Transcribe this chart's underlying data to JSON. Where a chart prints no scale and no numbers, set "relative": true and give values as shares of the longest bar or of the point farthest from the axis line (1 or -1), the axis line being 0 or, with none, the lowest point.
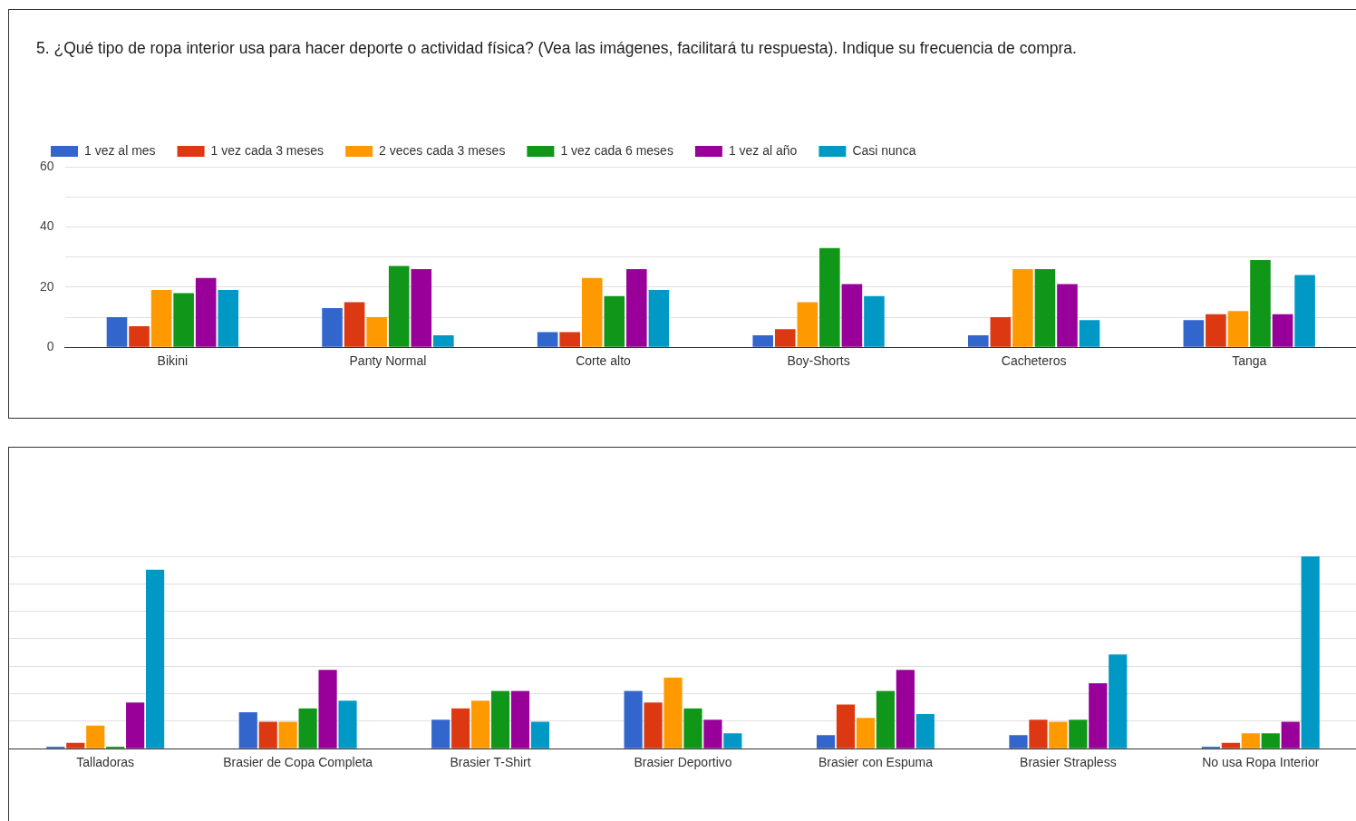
{
  "chart_data": [
    {
      "type": "bar",
      "title": "5. ¿Qué tipo de ropa interior usa para hacer deporte o actividad física? (Vea las imágenes, facilitará tu respuesta). Indique su frecuencia de compra.",
      "categories": [
        "Bikini",
        "Panty Normal",
        "Corte alto",
        "Boy-Shorts",
        "Cacheteros",
        "Tanga"
      ],
      "series": [
        {
          "name": "1 vez al mes",
          "color": "#3366cc",
          "values": [
            10,
            13,
            5,
            4,
            4,
            9
          ]
        },
        {
          "name": "1 vez cada 3 meses",
          "color": "#dc3912",
          "values": [
            7,
            15,
            5,
            6,
            10,
            11
          ]
        },
        {
          "name": "2 veces cada 3 meses",
          "color": "#ff9900",
          "values": [
            19,
            10,
            23,
            15,
            26,
            12
          ]
        },
        {
          "name": "1 vez cada 6 meses",
          "color": "#109618",
          "values": [
            18,
            27,
            17,
            33,
            26,
            29
          ]
        },
        {
          "name": "1 vez al año",
          "color": "#990099",
          "values": [
            23,
            26,
            26,
            21,
            21,
            11
          ]
        },
        {
          "name": "Casi nunca",
          "color": "#0099c6",
          "values": [
            19,
            4,
            19,
            17,
            9,
            24
          ]
        }
      ],
      "ylim": [
        0,
        60
      ],
      "yticks": [
        0,
        {
          "value": 10,
          "label": null
        },
        20,
        {
          "value": 30,
          "label": null
        },
        40,
        {
          "value": 50,
          "label": null
        },
        60
      ],
      "grid": "y",
      "legend": "top left"
    },
    {
      "type": "bar",
      "relative": true,
      "categories": [
        "Talladoras",
        "Brasier de Copa Completa",
        "Brasier T-Shirt",
        "Brasier Deportivo",
        "Brasier con Espuma",
        "Brasier Strapless",
        "No usa Ropa Interior"
      ],
      "series": [
        {
          "color": "#3366cc",
          "values": [
            0.01,
            0.19,
            0.15,
            0.3,
            0.07,
            0.07,
            0.01
          ]
        },
        {
          "color": "#dc3912",
          "values": [
            0.03,
            0.14,
            0.21,
            0.24,
            0.23,
            0.15,
            0.03
          ]
        },
        {
          "color": "#ff9900",
          "values": [
            0.12,
            0.14,
            0.25,
            0.37,
            0.16,
            0.14,
            0.08
          ]
        },
        {
          "color": "#109618",
          "values": [
            0.01,
            0.21,
            0.3,
            0.21,
            0.3,
            0.15,
            0.08
          ]
        },
        {
          "color": "#990099",
          "values": [
            0.24,
            0.41,
            0.3,
            0.15,
            0.41,
            0.34,
            0.14
          ]
        },
        {
          "color": "#0099c6",
          "values": [
            0.93,
            0.25,
            0.14,
            0.08,
            0.18,
            0.49,
            1
          ]
        }
      ],
      "grid": "y"
    }
  ]
}
